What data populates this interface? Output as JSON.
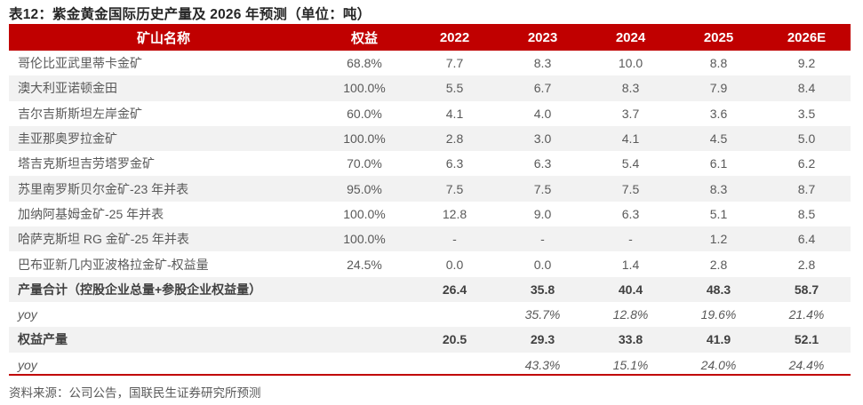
{
  "title": "表12：紫金黄金国际历史产量及 2026 年预测（单位：吨）",
  "footer": "资料来源：公司公告，国联民生证券研究所预测",
  "colors": {
    "header_red": "#C00000",
    "stripe_gray": "#F2F2F2",
    "body_text": "#595959",
    "title_text": "#262626"
  },
  "table": {
    "headers": [
      "矿山名称",
      "权益",
      "2022",
      "2023",
      "2024",
      "2025",
      "2026E"
    ],
    "rows": [
      {
        "name": "哥伦比亚武里蒂卡金矿",
        "equity": "68.8%",
        "style": "",
        "values": [
          "7.7",
          "8.3",
          "10.0",
          "8.8",
          "9.2"
        ]
      },
      {
        "name": "澳大利亚诺顿金田",
        "equity": "100.0%",
        "style": "",
        "values": [
          "5.5",
          "6.7",
          "8.3",
          "7.9",
          "8.4"
        ]
      },
      {
        "name": "吉尔吉斯斯坦左岸金矿",
        "equity": "60.0%",
        "style": "",
        "values": [
          "4.1",
          "4.0",
          "3.7",
          "3.6",
          "3.5"
        ]
      },
      {
        "name": "圭亚那奥罗拉金矿",
        "equity": "100.0%",
        "style": "",
        "values": [
          "2.8",
          "3.0",
          "4.1",
          "4.5",
          "5.0"
        ]
      },
      {
        "name": "塔吉克斯坦吉劳塔罗金矿",
        "equity": "70.0%",
        "style": "",
        "values": [
          "6.3",
          "6.3",
          "5.4",
          "6.1",
          "6.2"
        ]
      },
      {
        "name": "苏里南罗斯贝尔金矿-23 年并表",
        "equity": "95.0%",
        "style": "",
        "values": [
          "7.5",
          "7.5",
          "7.5",
          "8.3",
          "8.7"
        ]
      },
      {
        "name": "加纳阿基姆金矿-25 年并表",
        "equity": "100.0%",
        "style": "",
        "values": [
          "12.8",
          "9.0",
          "6.3",
          "5.1",
          "8.5"
        ]
      },
      {
        "name": "哈萨克斯坦 RG 金矿-25 年并表",
        "equity": "100.0%",
        "style": "",
        "values": [
          "-",
          "-",
          "-",
          "1.2",
          "6.4"
        ]
      },
      {
        "name": "巴布亚新几内亚波格拉金矿-权益量",
        "equity": "24.5%",
        "style": "",
        "values": [
          "0.0",
          "0.0",
          "1.4",
          "2.8",
          "2.8"
        ]
      },
      {
        "name": "产量合计（控股企业总量+参股企业权益量）",
        "equity": "",
        "style": "bold",
        "values": [
          "26.4",
          "35.8",
          "40.4",
          "48.3",
          "58.7"
        ]
      },
      {
        "name": "yoy",
        "equity": "",
        "style": "italic",
        "values": [
          "",
          "35.7%",
          "12.8%",
          "19.6%",
          "21.4%"
        ]
      },
      {
        "name": "权益产量",
        "equity": "",
        "style": "bold",
        "values": [
          "20.5",
          "29.3",
          "33.8",
          "41.9",
          "52.1"
        ]
      },
      {
        "name": "yoy",
        "equity": "",
        "style": "italic",
        "values": [
          "",
          "43.3%",
          "15.1%",
          "24.0%",
          "24.4%"
        ]
      }
    ]
  },
  "chart_data": {
    "type": "table",
    "title": "表12：紫金黄金国际历史产量及 2026 年预测（单位：吨）",
    "columns": [
      "矿山名称",
      "权益",
      "2022",
      "2023",
      "2024",
      "2025",
      "2026E"
    ],
    "rows": [
      [
        "哥伦比亚武里蒂卡金矿",
        "68.8%",
        "7.7",
        "8.3",
        "10.0",
        "8.8",
        "9.2"
      ],
      [
        "澳大利亚诺顿金田",
        "100.0%",
        "5.5",
        "6.7",
        "8.3",
        "7.9",
        "8.4"
      ],
      [
        "吉尔吉斯斯坦左岸金矿",
        "60.0%",
        "4.1",
        "4.0",
        "3.7",
        "3.6",
        "3.5"
      ],
      [
        "圭亚那奥罗拉金矿",
        "100.0%",
        "2.8",
        "3.0",
        "4.1",
        "4.5",
        "5.0"
      ],
      [
        "塔吉克斯坦吉劳塔罗金矿",
        "70.0%",
        "6.3",
        "6.3",
        "5.4",
        "6.1",
        "6.2"
      ],
      [
        "苏里南罗斯贝尔金矿-23 年并表",
        "95.0%",
        "7.5",
        "7.5",
        "7.5",
        "8.3",
        "8.7"
      ],
      [
        "加纳阿基姆金矿-25 年并表",
        "100.0%",
        "12.8",
        "9.0",
        "6.3",
        "5.1",
        "8.5"
      ],
      [
        "哈萨克斯坦 RG 金矿-25 年并表",
        "100.0%",
        "-",
        "-",
        "-",
        "1.2",
        "6.4"
      ],
      [
        "巴布亚新几内亚波格拉金矿-权益量",
        "24.5%",
        "0.0",
        "0.0",
        "1.4",
        "2.8",
        "2.8"
      ],
      [
        "产量合计（控股企业总量+参股企业权益量）",
        "",
        "26.4",
        "35.8",
        "40.4",
        "48.3",
        "58.7"
      ],
      [
        "yoy",
        "",
        "",
        "35.7%",
        "12.8%",
        "19.6%",
        "21.4%"
      ],
      [
        "权益产量",
        "",
        "20.5",
        "29.3",
        "33.8",
        "41.9",
        "52.1"
      ],
      [
        "yoy",
        "",
        "",
        "43.3%",
        "15.1%",
        "24.0%",
        "24.4%"
      ]
    ]
  }
}
